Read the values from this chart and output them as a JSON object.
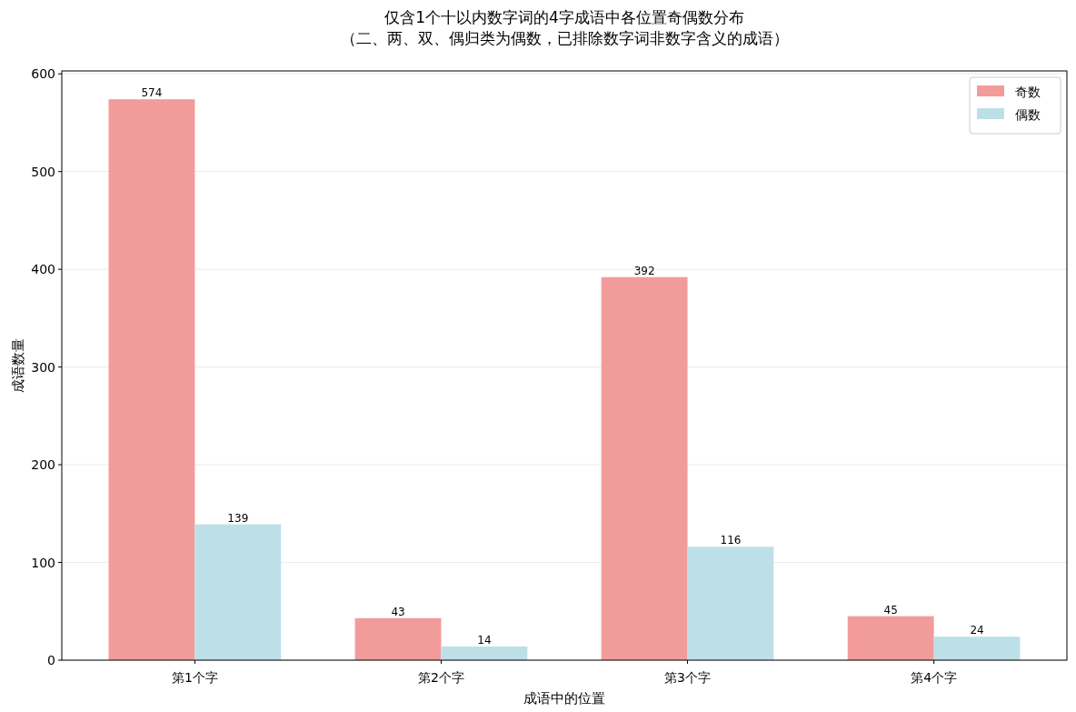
{
  "chart_data": {
    "type": "bar",
    "title": "仅含1个十以内数字词的4字成语中各位置奇偶数分布",
    "subtitle": "（二、两、双、偶归类为偶数，已排除数字词非数字含义的成语）",
    "xlabel": "成语中的位置",
    "ylabel": "成语数量",
    "categories": [
      "第1个字",
      "第2个字",
      "第3个字",
      "第4个字"
    ],
    "series": [
      {
        "name": "奇数",
        "color": "#f19c9b",
        "values": [
          574,
          43,
          392,
          45
        ]
      },
      {
        "name": "偶数",
        "color": "#bde0e8",
        "values": [
          139,
          14,
          116,
          24
        ]
      }
    ],
    "ylim": [
      0,
      603
    ],
    "yticks": [
      0,
      100,
      200,
      300,
      400,
      500,
      600
    ],
    "grid": "y",
    "legend": "top right",
    "data_labels": true
  }
}
